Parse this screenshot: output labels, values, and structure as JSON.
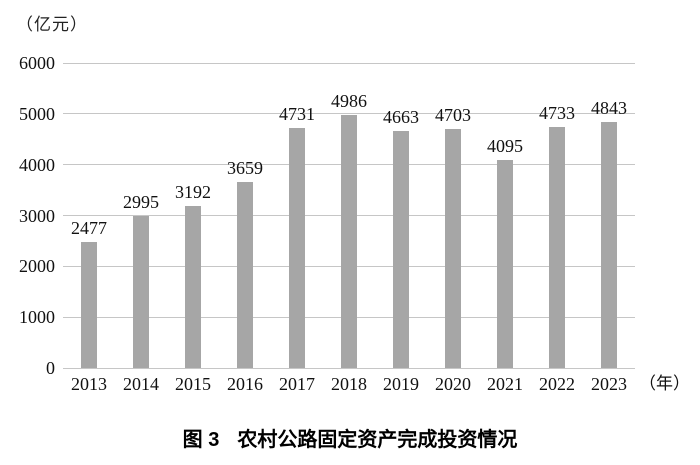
{
  "chart_data": {
    "type": "bar",
    "title": "图3 农村公路固定资产完成投资情况",
    "unit_label": "（亿元）",
    "x_unit_label": "（年）",
    "categories": [
      "2013",
      "2014",
      "2015",
      "2016",
      "2017",
      "2018",
      "2019",
      "2020",
      "2021",
      "2022",
      "2023"
    ],
    "values": [
      2477,
      2995,
      3192,
      3659,
      4731,
      4986,
      4663,
      4703,
      4095,
      4733,
      4843
    ],
    "ylim": [
      0,
      6000
    ],
    "ytick_step": 1000,
    "yticks": [
      "0",
      "1000",
      "2000",
      "3000",
      "4000",
      "5000",
      "6000"
    ],
    "grid": "horizontal",
    "legend": "none",
    "bar_color": "#a6a6a6",
    "gridline_color": "#c6c6c6",
    "xlabel": "年",
    "ylabel": "亿元"
  },
  "caption": {
    "figure_label": "图 3",
    "text": "农村公路固定资产完成投资情况"
  }
}
